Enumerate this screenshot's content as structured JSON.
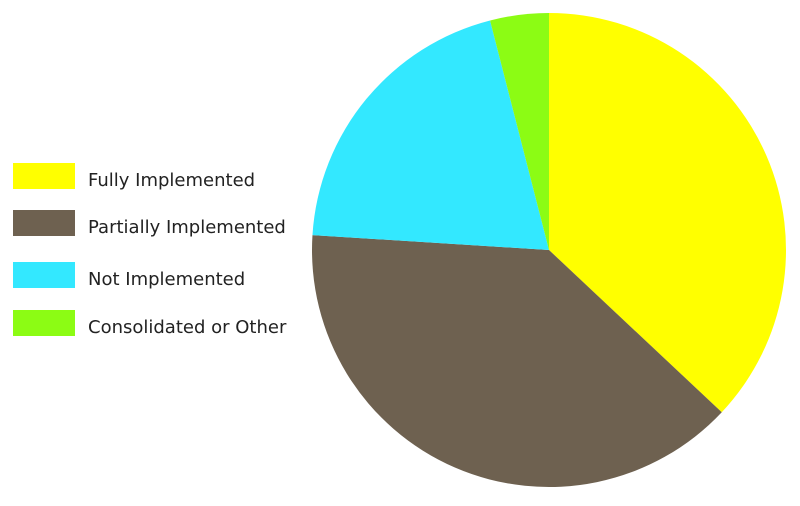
{
  "chart_data": {
    "type": "pie",
    "categories": [
      "Fully Implemented",
      "Partially Implemented",
      "Not Implemented",
      "Consolidated or Other"
    ],
    "values": [
      37,
      39,
      20,
      4
    ],
    "colors": [
      "#ffff00",
      "#6e6150",
      "#33e8ff",
      "#8cfc14"
    ]
  }
}
